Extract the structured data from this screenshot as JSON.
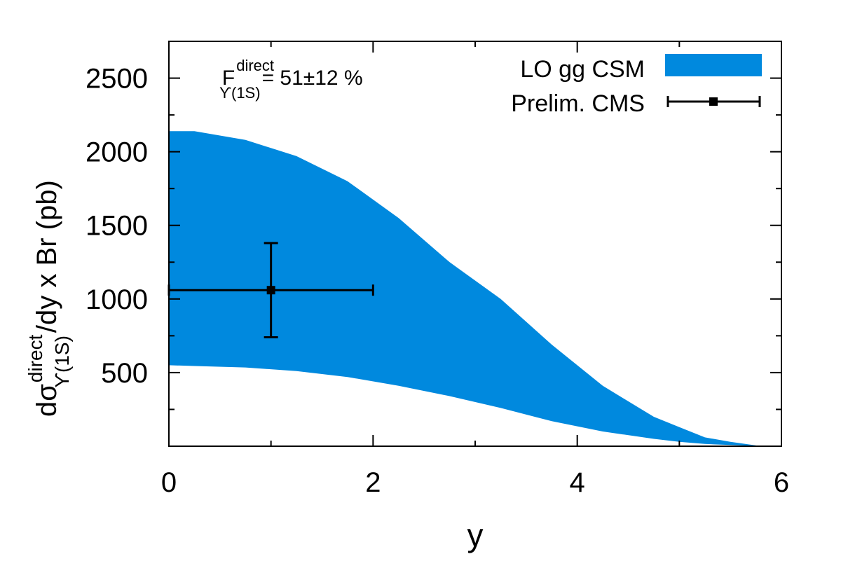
{
  "chart_data": {
    "type": "area",
    "xlabel": "y",
    "ylabel": {
      "prefix": "dσ",
      "superscript": "direct",
      "subscript": "ϒ(1S)",
      "suffix": "/dy x Br (pb)"
    },
    "xlim": [
      0,
      6
    ],
    "ylim": [
      0,
      2750
    ],
    "x_ticks": [
      0,
      2,
      4,
      6
    ],
    "x_tick_labels": [
      "0",
      "2",
      "4",
      "6"
    ],
    "x_minor_step": 1,
    "y_ticks": [
      500,
      1000,
      1500,
      2000,
      2500
    ],
    "y_tick_labels": [
      "500",
      "1000",
      "1500",
      "2000",
      "2500"
    ],
    "y_minor_step": 250,
    "annotation": {
      "base": "F",
      "superscript": "direct",
      "subscript": "ϒ(1S)",
      "value": "= 51±12 %"
    },
    "legend_position": "top-right",
    "series": [
      {
        "name": "LO gg CSM",
        "kind": "band",
        "color": "#0089de",
        "x": [
          0,
          0.25,
          0.75,
          1.25,
          1.75,
          2.25,
          2.75,
          3.25,
          3.75,
          4.25,
          4.75,
          5.0,
          5.25,
          5.5,
          5.75
        ],
        "upper": [
          2140,
          2140,
          2080,
          1970,
          1800,
          1550,
          1250,
          1000,
          690,
          410,
          200,
          130,
          60,
          30,
          5
        ],
        "lower": [
          550,
          545,
          535,
          510,
          470,
          410,
          340,
          260,
          170,
          100,
          50,
          30,
          15,
          8,
          2
        ]
      },
      {
        "name": "Prelim. CMS",
        "kind": "points",
        "color": "#000000",
        "points": [
          {
            "x": 1.0,
            "y": 1060,
            "x_err": [
              1.0,
              1.0
            ],
            "y_err": [
              320,
              320
            ]
          }
        ]
      }
    ]
  }
}
